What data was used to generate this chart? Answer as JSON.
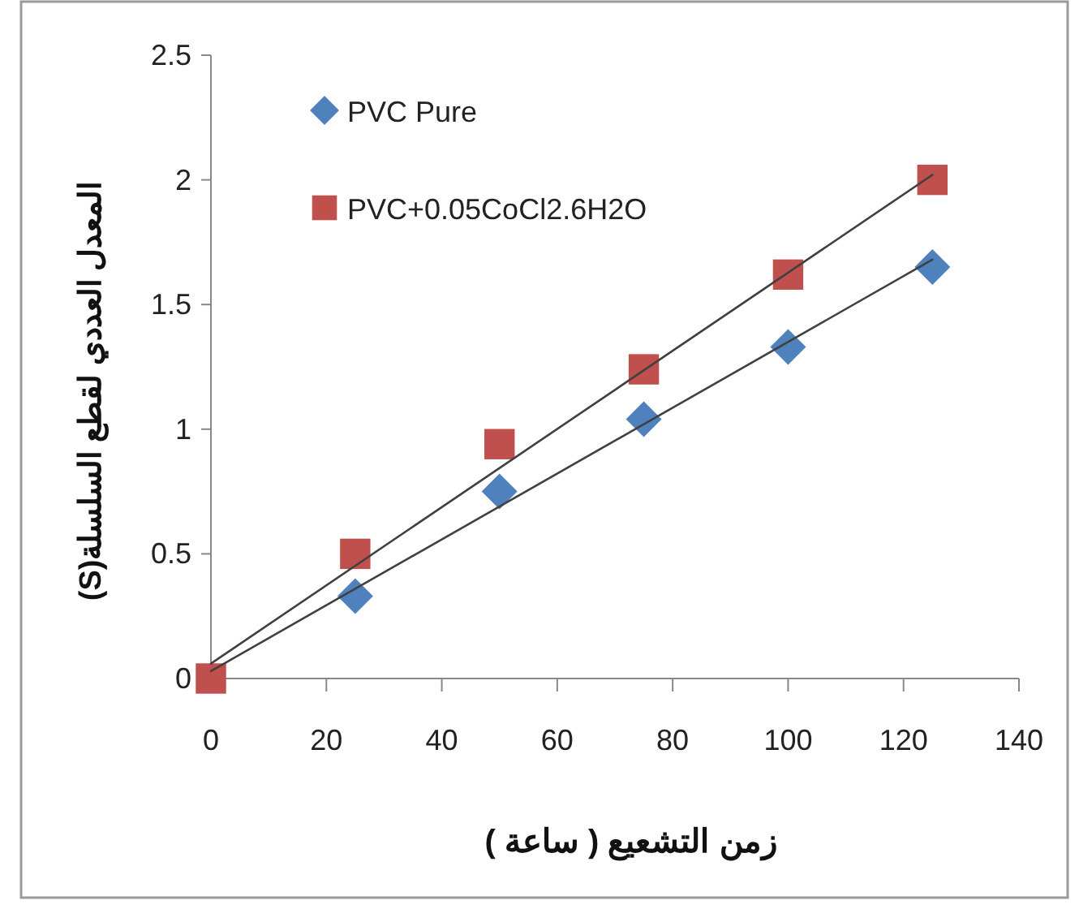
{
  "chart_data": {
    "type": "scatter",
    "xlabel": "زمن التشعيع ( ساعة )",
    "ylabel": "المعدل العددي لقطع السلسلة(S)",
    "xlim": [
      0,
      140
    ],
    "ylim": [
      0,
      2.5
    ],
    "xticks": [
      0,
      20,
      40,
      60,
      80,
      100,
      120,
      140
    ],
    "yticks": [
      0,
      0.5,
      1,
      1.5,
      2,
      2.5
    ],
    "grid": false,
    "legend": "top left",
    "series": [
      {
        "name": "PVC Pure",
        "color": "#4f81bd",
        "marker": "diamond",
        "x": [
          25,
          50,
          75,
          100,
          125
        ],
        "values": [
          0.33,
          0.75,
          1.04,
          1.33,
          1.65
        ]
      },
      {
        "name": "PVC+0.05CoCl2.6H2O",
        "color": "#c0504d",
        "marker": "square",
        "x": [
          0,
          25,
          50,
          75,
          100,
          125
        ],
        "values": [
          0,
          0.5,
          0.94,
          1.24,
          1.62,
          2.0
        ]
      },
      {
        "type": "line",
        "color": "#404040",
        "x": [
          0,
          125
        ],
        "values": [
          0.03,
          1.68
        ]
      },
      {
        "type": "line",
        "color": "#404040",
        "x": [
          0,
          125
        ],
        "values": [
          0.06,
          2.02
        ]
      }
    ]
  }
}
